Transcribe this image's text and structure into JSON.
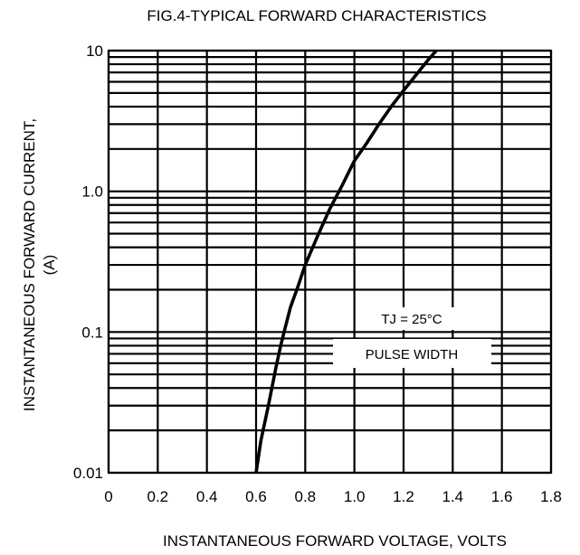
{
  "chart_data": {
    "type": "line",
    "title": "FIG.4-TYPICAL FORWARD CHARACTERISTICS",
    "xlabel": "INSTANTANEOUS FORWARD VOLTAGE, VOLTS",
    "ylabel_line1": "INSTANTANEOUS FORWARD CURRENT,",
    "ylabel_line2": "(A)",
    "xlim": [
      0,
      1.8
    ],
    "ylim": [
      0.01,
      10
    ],
    "y_scale": "log",
    "grid": true,
    "x_ticks": [
      0,
      0.2,
      0.4,
      0.6,
      0.8,
      1.0,
      1.2,
      1.4,
      1.6,
      1.8
    ],
    "x_tick_labels": [
      "0",
      "0.2",
      "0.4",
      "0.6",
      "0.8",
      "1.0",
      "1.2",
      "1.4",
      "1.6",
      "1.8"
    ],
    "y_ticks": [
      0.01,
      0.1,
      1.0,
      10
    ],
    "y_tick_labels": [
      "0.01",
      "0.1",
      "1.0",
      "10"
    ],
    "annotations": [
      "TJ = 25°C",
      "PULSE WIDTH"
    ],
    "series": [
      {
        "x": [
          0.6,
          0.62,
          0.65,
          0.68,
          0.7,
          0.72,
          0.74,
          0.77,
          0.8,
          0.85,
          0.9,
          0.95,
          1.0,
          1.05,
          1.1,
          1.15,
          1.2,
          1.25,
          1.3,
          1.35
        ],
        "y": [
          0.01,
          0.017,
          0.03,
          0.055,
          0.08,
          0.11,
          0.15,
          0.21,
          0.3,
          0.48,
          0.75,
          1.1,
          1.65,
          2.2,
          3.0,
          4.0,
          5.2,
          6.7,
          8.6,
          10.8
        ]
      }
    ]
  }
}
